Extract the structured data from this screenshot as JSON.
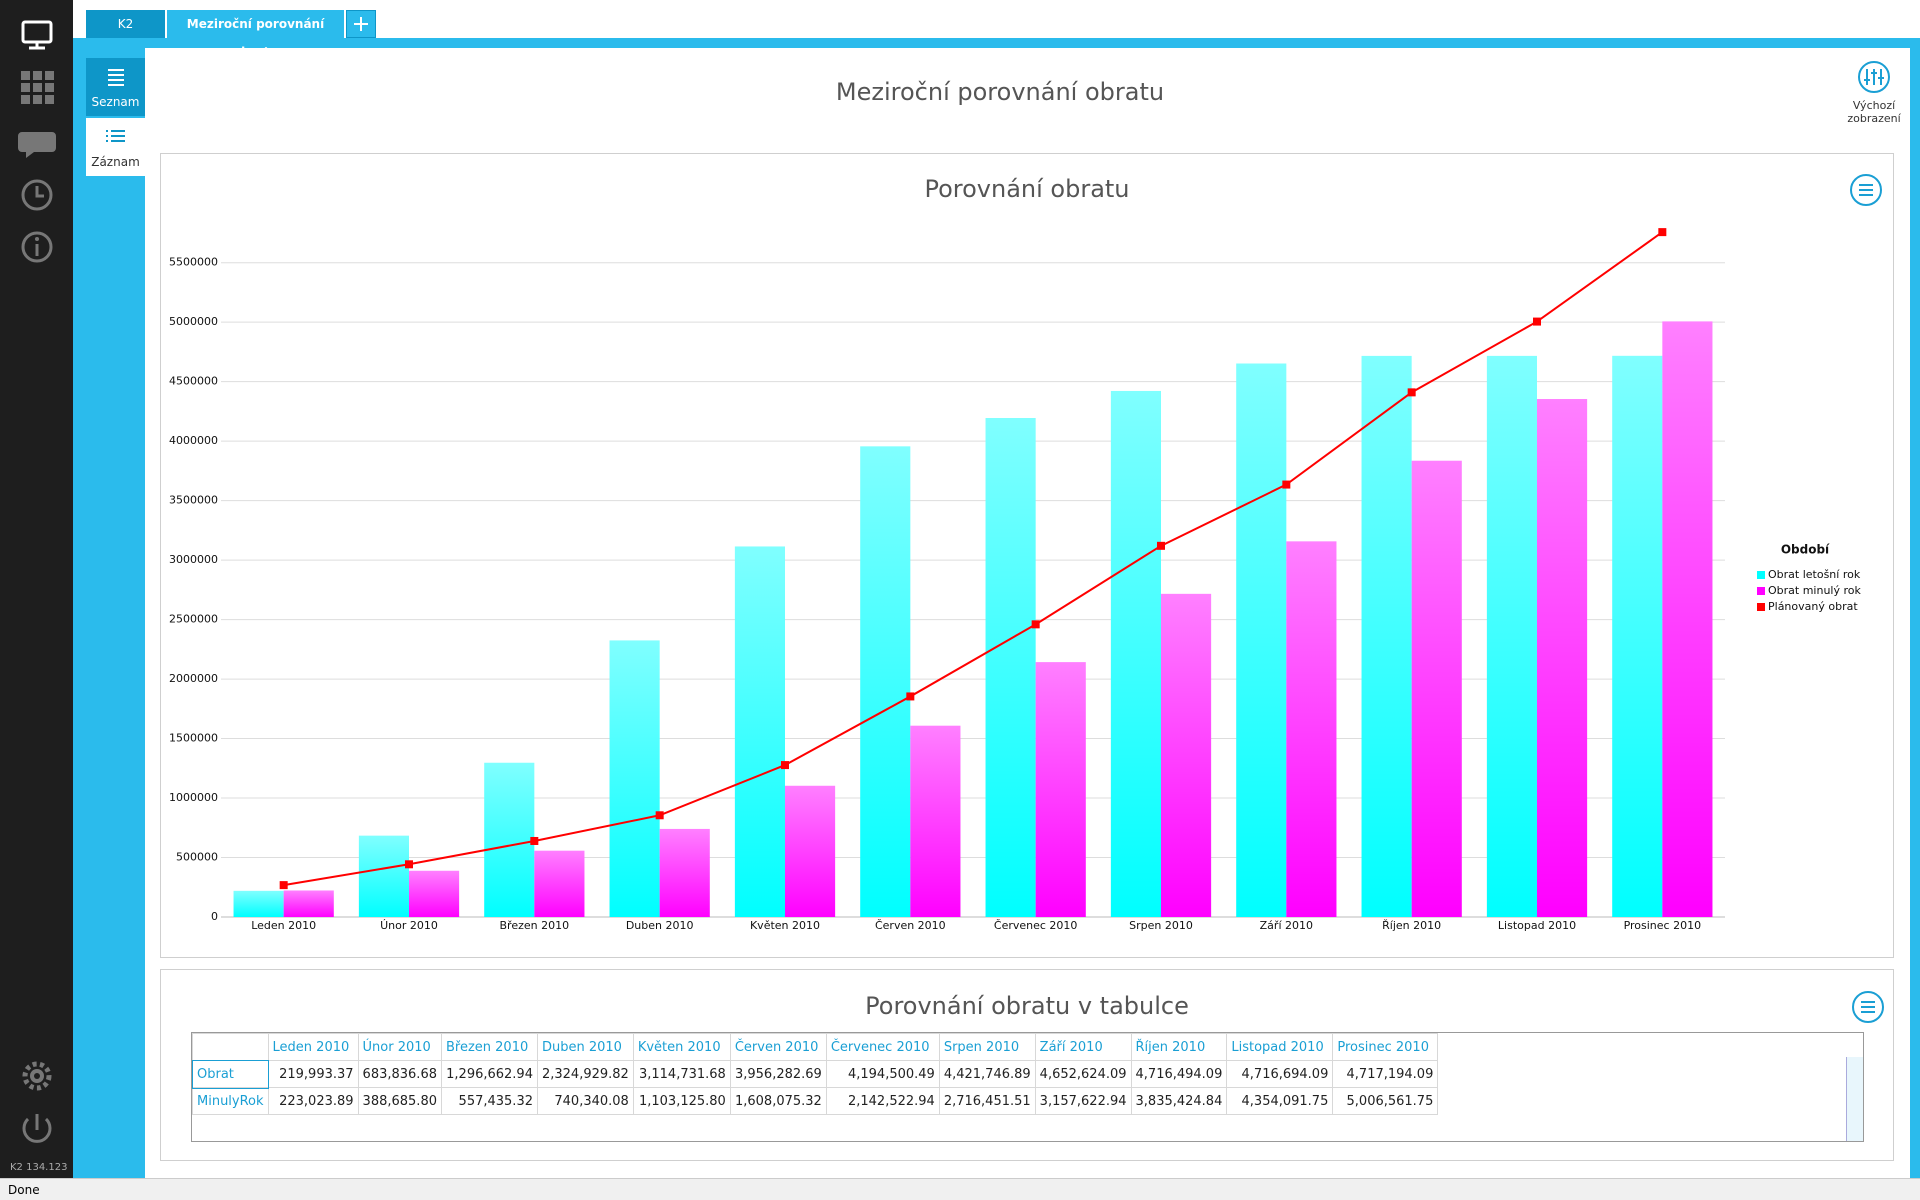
{
  "tabs": [
    "K2",
    "Meziroční porovnání obratu"
  ],
  "side_nav": [
    "Seznam",
    "Záznam"
  ],
  "page_title": "Meziroční porovnání obratu",
  "default_view_button": "Výchozí zobrazení",
  "version": "K2 134.123",
  "status": "Done",
  "chart_data": {
    "type": "bar",
    "title": "Porovnání obratu",
    "categories": [
      "Leden 2010",
      "Únor 2010",
      "Březen 2010",
      "Duben 2010",
      "Květen 2010",
      "Červen 2010",
      "Červenec 2010",
      "Srpen 2010",
      "Září 2010",
      "Říjen 2010",
      "Listopad 2010",
      "Prosinec 2010"
    ],
    "series": [
      {
        "name": "Obrat letošní rok",
        "color": "#00ffff",
        "values": [
          219993.37,
          683836.68,
          1296662.94,
          2324929.82,
          3114731.68,
          3956282.69,
          4194500.49,
          4421746.89,
          4652624.09,
          4716494.09,
          4716694.09,
          4717194.09
        ]
      },
      {
        "name": "Obrat minulý rok",
        "color": "#ff00ff",
        "values": [
          223023.89,
          388685.8,
          557435.32,
          740340.08,
          1103125.8,
          1608075.32,
          2142522.94,
          2716451.51,
          3157622.94,
          3835424.84,
          4354091.75,
          5006561.75
        ]
      },
      {
        "name": "Plánovaný obrat",
        "color": "#ff0000",
        "type": "line",
        "values": [
          268000,
          443000,
          639000,
          855000,
          1277000,
          1854000,
          2460000,
          3120000,
          3635000,
          4410000,
          5005000,
          5757000
        ]
      }
    ],
    "ylim": [
      0,
      5800000
    ],
    "yticks": [
      0,
      500000,
      1000000,
      1500000,
      2000000,
      2500000,
      3000000,
      3500000,
      4000000,
      4500000,
      5000000,
      5500000
    ],
    "grid": true,
    "legend": "right",
    "legend_title": "Období"
  },
  "table": {
    "title": "Porovnání obratu v tabulce",
    "rows": [
      {
        "label": "Obrat",
        "cells": [
          "219,993.37",
          "683,836.68",
          "1,296,662.94",
          "2,324,929.82",
          "3,114,731.68",
          "3,956,282.69",
          "4,194,500.49",
          "4,421,746.89",
          "4,652,624.09",
          "4,716,494.09",
          "4,716,694.09",
          "4,717,194.09"
        ]
      },
      {
        "label": "MinulyRok",
        "cells": [
          "223,023.89",
          "388,685.80",
          "557,435.32",
          "740,340.08",
          "1,103,125.80",
          "1,608,075.32",
          "2,142,522.94",
          "2,716,451.51",
          "3,157,622.94",
          "3,835,424.84",
          "4,354,091.75",
          "5,006,561.75"
        ]
      }
    ]
  }
}
